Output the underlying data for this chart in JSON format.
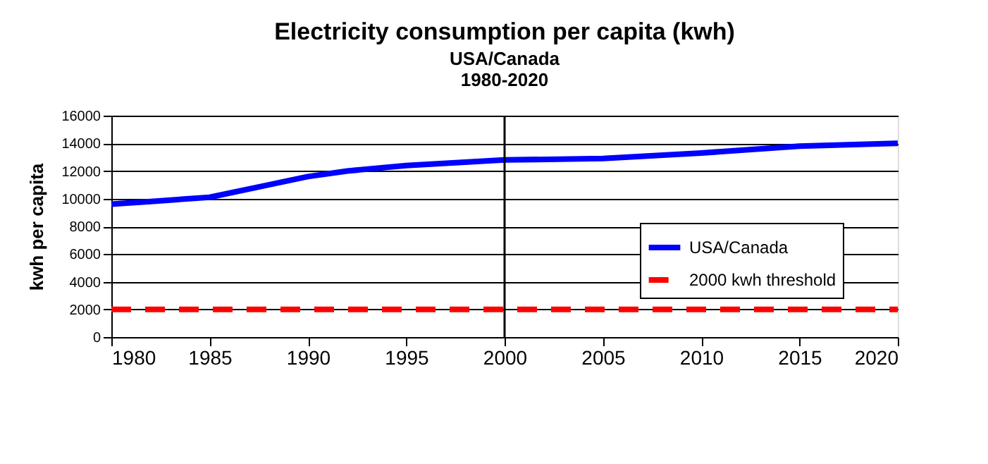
{
  "chart_data": {
    "type": "line",
    "title": "Electricity consumption per capita (kwh)",
    "subtitle": [
      "USA/Canada",
      "1980-2020"
    ],
    "ylabel": "kwh per capita",
    "x": [
      1980,
      1982,
      1985,
      1988,
      1990,
      1992,
      1995,
      2000,
      2005,
      2010,
      2015,
      2020
    ],
    "series": [
      {
        "name": "USA/Canada",
        "color": "#0000ff",
        "line_style": "solid",
        "values": [
          9600,
          9800,
          10100,
          11000,
          11600,
          12000,
          12400,
          12800,
          12900,
          13300,
          13800,
          14000
        ]
      },
      {
        "name": "2000 kwh threshold",
        "color": "#ff0000",
        "line_style": "dashed",
        "values": [
          2000,
          2000,
          2000,
          2000,
          2000,
          2000,
          2000,
          2000,
          2000,
          2000,
          2000,
          2000
        ]
      }
    ],
    "xlim": [
      1980,
      2020
    ],
    "xticks": [
      1980,
      1985,
      1990,
      1995,
      2000,
      2005,
      2010,
      2015,
      2020
    ],
    "ylim": [
      0,
      16000
    ],
    "yticks": [
      0,
      2000,
      4000,
      6000,
      8000,
      10000,
      12000,
      14000,
      16000
    ],
    "ref_lines": [
      {
        "axis": "x",
        "value": 2000,
        "color": "#000000"
      }
    ],
    "grid": "y",
    "legend": "bottom right",
    "marker": "none"
  }
}
